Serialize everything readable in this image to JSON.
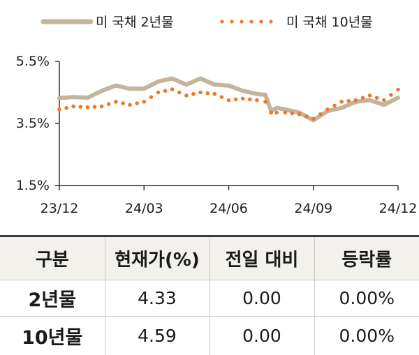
{
  "chart_data": {
    "type": "line",
    "title": "",
    "xlabel": "",
    "ylabel": "",
    "legend_position": "top",
    "x_ticks": [
      "23/12",
      "24/03",
      "24/06",
      "24/09",
      "24/12"
    ],
    "y_ticks": [
      "5.5%",
      "3.5%",
      "1.5%"
    ],
    "ylim": [
      1.5,
      5.5
    ],
    "xlim": [
      0,
      12
    ],
    "series": [
      {
        "name": "미 국채 2년물",
        "style": "solid",
        "color": "#c2b59b",
        "x": [
          0,
          0.5,
          1.0,
          1.5,
          2.0,
          2.5,
          3.0,
          3.5,
          4.0,
          4.5,
          5.0,
          5.5,
          6.0,
          6.5,
          7.0,
          7.3,
          7.5,
          7.7,
          8.0,
          8.5,
          9.0,
          9.5,
          10.0,
          10.5,
          11.0,
          11.5,
          12.0
        ],
        "values": [
          4.32,
          4.35,
          4.33,
          4.55,
          4.72,
          4.62,
          4.62,
          4.85,
          4.95,
          4.75,
          4.95,
          4.75,
          4.72,
          4.55,
          4.45,
          4.42,
          3.9,
          4.0,
          3.95,
          3.85,
          3.6,
          3.9,
          4.0,
          4.2,
          4.25,
          4.1,
          4.33
        ]
      },
      {
        "name": "미 국채 10년물",
        "style": "dotted",
        "color": "#ea7a2e",
        "x": [
          0,
          0.5,
          1.0,
          1.5,
          2.0,
          2.5,
          3.0,
          3.5,
          4.0,
          4.5,
          5.0,
          5.5,
          6.0,
          6.5,
          7.0,
          7.3,
          7.5,
          7.7,
          8.0,
          8.5,
          9.0,
          9.5,
          10.0,
          10.5,
          11.0,
          11.5,
          12.0
        ],
        "values": [
          3.95,
          4.05,
          4.02,
          4.05,
          4.2,
          4.1,
          4.2,
          4.5,
          4.6,
          4.4,
          4.5,
          4.45,
          4.25,
          4.3,
          4.25,
          4.2,
          3.85,
          3.85,
          3.85,
          3.8,
          3.65,
          3.95,
          4.2,
          4.25,
          4.4,
          4.25,
          4.59
        ]
      }
    ]
  },
  "table": {
    "headers": [
      "구분",
      "현재가(%)",
      "전일 대비",
      "등락률"
    ],
    "rows": [
      [
        "2년물",
        "4.33",
        "0.00",
        "0.00%"
      ],
      [
        "10년물",
        "4.59",
        "0.00",
        "0.00%"
      ]
    ]
  }
}
